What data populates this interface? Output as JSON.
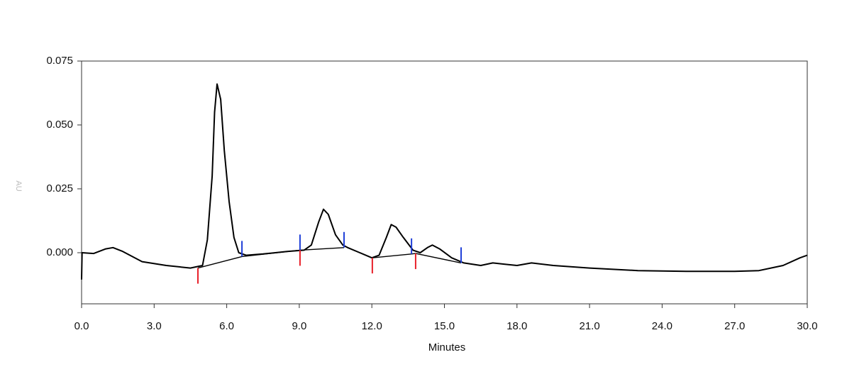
{
  "chart_data": {
    "type": "line",
    "x_label": "Minutes",
    "y_label": "AU",
    "xlim": [
      0,
      30
    ],
    "ylim": [
      -0.02,
      0.075
    ],
    "xticks": [
      {
        "value": 0,
        "label": "0.0"
      },
      {
        "value": 3,
        "label": "3.0"
      },
      {
        "value": 6,
        "label": "6.0"
      },
      {
        "value": 9,
        "label": "9.0"
      },
      {
        "value": 12,
        "label": "12.0"
      },
      {
        "value": 15,
        "label": "15.0"
      },
      {
        "value": 18,
        "label": "18.0"
      },
      {
        "value": 21,
        "label": "21.0"
      },
      {
        "value": 24,
        "label": "24.0"
      },
      {
        "value": 27,
        "label": "27.0"
      },
      {
        "value": 30,
        "label": "30.0"
      }
    ],
    "yticks": [
      {
        "value": 0,
        "label": "0.000"
      },
      0.025,
      {
        "value": 0.05,
        "label": "0.050"
      },
      0.075
    ],
    "series": [
      {
        "color": "#000000",
        "x": [
          0,
          0.02,
          0.5,
          1.0,
          1.3,
          1.7,
          2.5,
          3.5,
          4.5,
          5.0,
          5.2,
          5.4,
          5.5,
          5.6,
          5.75,
          5.9,
          6.1,
          6.3,
          6.5,
          6.8,
          7.5,
          8.5,
          9.2,
          9.5,
          9.8,
          10.0,
          10.2,
          10.5,
          10.8,
          11.0,
          11.5,
          12.0,
          12.3,
          12.6,
          12.8,
          13.0,
          13.3,
          13.7,
          14.0,
          14.3,
          14.5,
          14.8,
          15.3,
          15.8,
          16.5,
          17.0,
          17.5,
          18.0,
          18.6,
          19.5,
          21.0,
          23.0,
          25.0,
          27.0,
          28.0,
          29.0,
          29.7,
          30.0
        ],
        "values": [
          -0.0105,
          0,
          -0.0003,
          0.0015,
          0.002,
          0.0005,
          -0.0035,
          -0.005,
          -0.006,
          -0.005,
          0.005,
          0.03,
          0.055,
          0.066,
          0.06,
          0.04,
          0.02,
          0.006,
          0,
          -0.001,
          -0.0005,
          0.0005,
          0.001,
          0.003,
          0.012,
          0.017,
          0.015,
          0.007,
          0.003,
          0.002,
          0,
          -0.002,
          -0.001,
          0.006,
          0.011,
          0.01,
          0.006,
          0.001,
          0,
          0.002,
          0.003,
          0.0015,
          -0.002,
          -0.004,
          -0.005,
          -0.004,
          -0.0045,
          -0.005,
          -0.004,
          -0.005,
          -0.006,
          -0.007,
          -0.0073,
          -0.0073,
          -0.007,
          -0.005,
          -0.002,
          -0.001
        ]
      },
      {
        "color": "#000000",
        "x": [
          4.81,
          6.63,
          9.03,
          10.85,
          11.5,
          12.02,
          13.64,
          13.81,
          15.69
        ],
        "values": [
          -0.006,
          -0.0015,
          0.001,
          0.002,
          null,
          -0.002,
          -0.0005,
          -0.0003,
          -0.004
        ]
      }
    ],
    "peak_starts": {
      "color": "#e8202a",
      "x": [
        4.81,
        9.03,
        12.02,
        13.81
      ],
      "values": [
        -0.006,
        0.001,
        -0.002,
        -0.0003
      ]
    },
    "peak_ends": {
      "color": "#1f3fd8",
      "x": [
        6.63,
        9.03,
        10.85,
        13.64,
        15.69
      ],
      "values": [
        -0.0015,
        0.001,
        0.002,
        -0.0005,
        -0.004
      ]
    }
  }
}
